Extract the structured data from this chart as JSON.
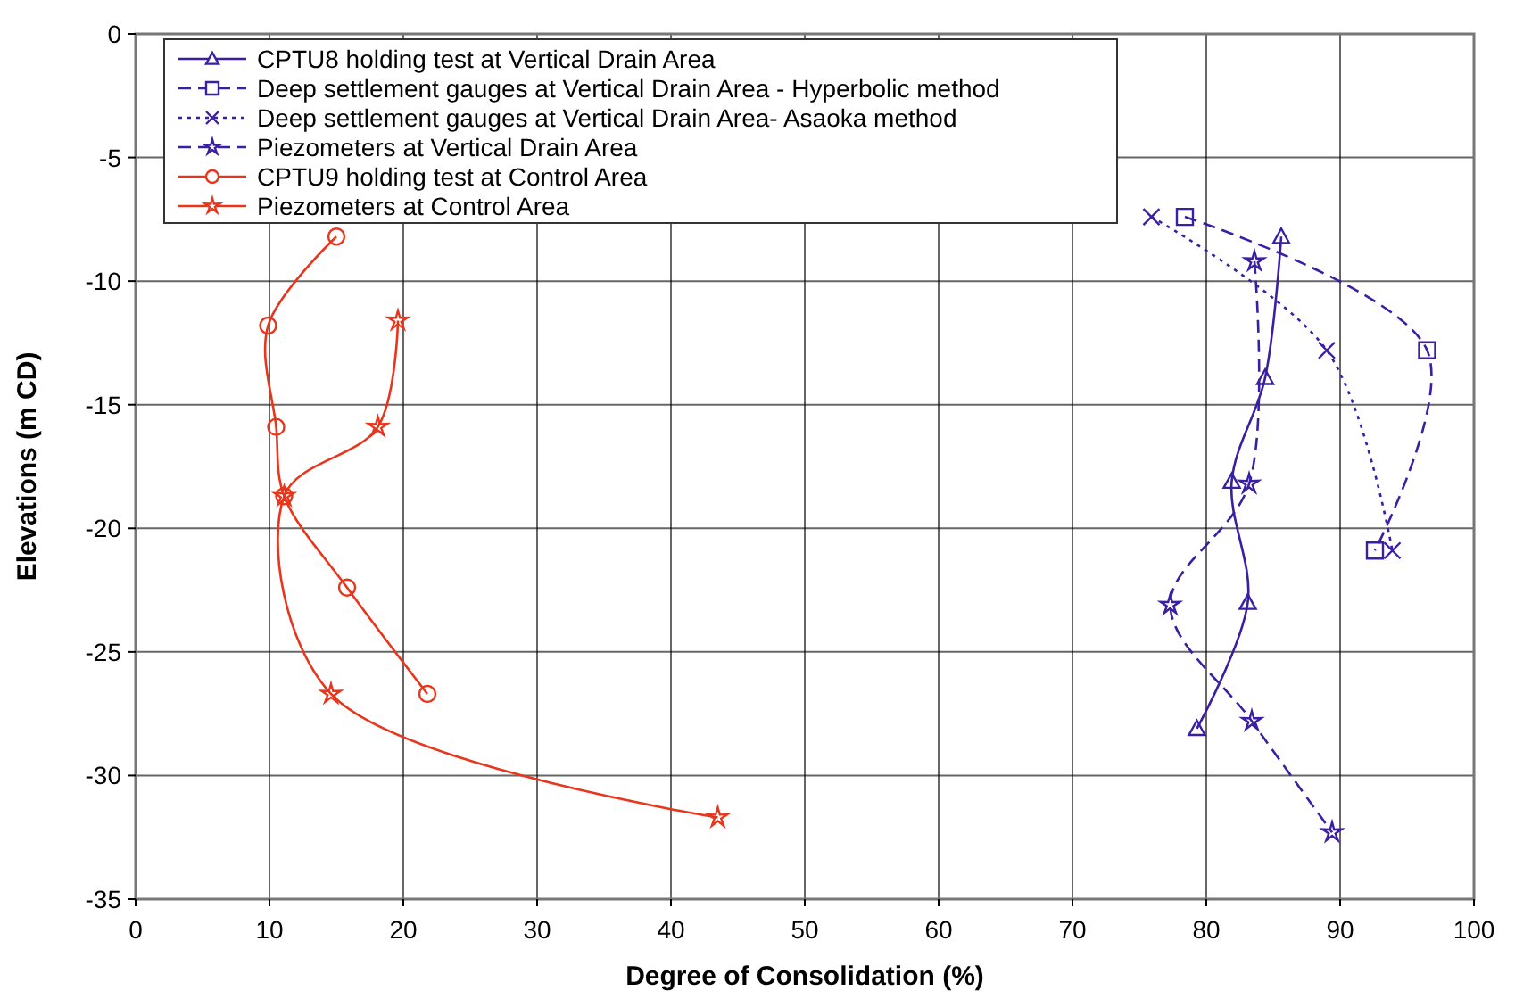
{
  "chart_data": {
    "type": "line",
    "xlabel": "Degree of Consolidation (%)",
    "ylabel": "Elevations (m CD)",
    "xlim": [
      0,
      100
    ],
    "xticks": [
      0,
      10,
      20,
      30,
      40,
      50,
      60,
      70,
      80,
      90,
      100
    ],
    "ylim": [
      -35,
      0
    ],
    "yticks": [
      -35,
      -30,
      -25,
      -20,
      -15,
      -10,
      -5,
      0
    ],
    "grid": true,
    "legend": "top left",
    "series": [
      {
        "name": "CPTU8 holding test at Vertical Drain Area",
        "color": "#3b1fa3",
        "marker": "triangle",
        "line_style": "solid",
        "x": [
          85.6,
          84.4,
          81.9,
          83.1,
          79.3
        ],
        "values": [
          -8.2,
          -13.9,
          -18.1,
          -23.0,
          -28.1
        ]
      },
      {
        "name": "Deep settlement gauges at Vertical Drain Area - Hyperbolic method",
        "color": "#3b1fa3",
        "marker": "square",
        "line_style": "dashed",
        "x": [
          78.4,
          96.5,
          92.6
        ],
        "values": [
          -7.4,
          -12.8,
          -20.9
        ]
      },
      {
        "name": "Deep settlement gauges at Vertical Drain Area- Asaoka method",
        "color": "#3b1fa3",
        "marker": "cross",
        "line_style": "dotted",
        "x": [
          75.9,
          89.0,
          93.9
        ],
        "values": [
          -7.4,
          -12.8,
          -20.9
        ]
      },
      {
        "name": "Piezometers at Vertical Drain Area",
        "color": "#3b1fa3",
        "marker": "star",
        "line_style": "dashed",
        "x": [
          83.6,
          83.2,
          77.3,
          83.4,
          89.4
        ],
        "values": [
          -9.2,
          -18.2,
          -23.1,
          -27.8,
          -32.3
        ]
      },
      {
        "name": "CPTU9 holding test at Control Area",
        "color": "#e8351c",
        "marker": "circle",
        "line_style": "solid",
        "x": [
          15.0,
          9.9,
          10.5,
          11.1,
          15.8,
          21.8
        ],
        "values": [
          -8.2,
          -11.8,
          -15.9,
          -18.7,
          -22.4,
          -26.7
        ]
      },
      {
        "name": "Piezometers at Control Area",
        "color": "#e8351c",
        "marker": "star",
        "line_style": "solid",
        "x": [
          19.6,
          18.1,
          11.1,
          14.6,
          43.5
        ],
        "values": [
          -11.6,
          -15.9,
          -18.7,
          -26.7,
          -31.7
        ]
      }
    ]
  }
}
